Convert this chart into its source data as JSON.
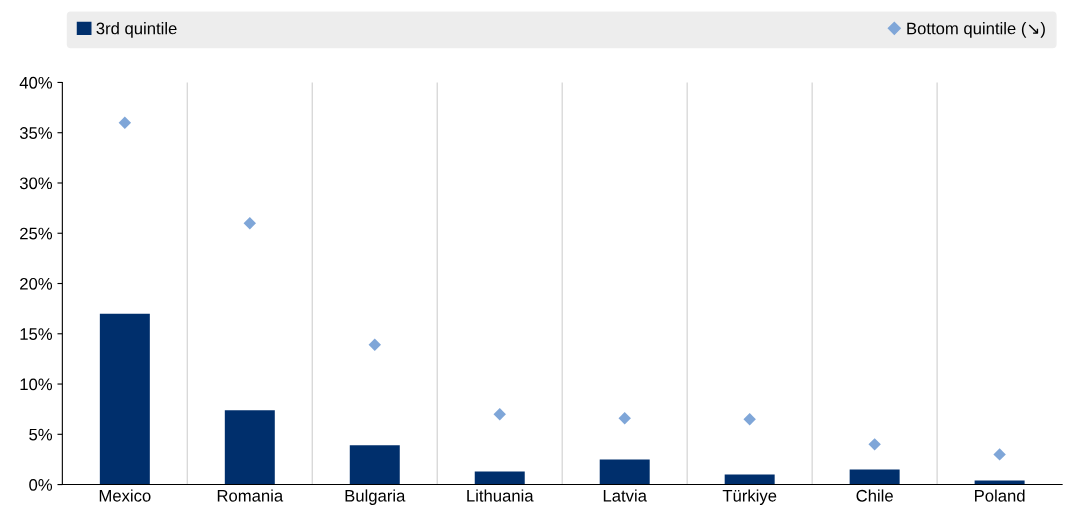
{
  "chart_data": {
    "type": "bar",
    "categories": [
      "Mexico",
      "Romania",
      "Bulgaria",
      "Lithuania",
      "Latvia",
      "Türkiye",
      "Chile",
      "Poland"
    ],
    "series": [
      {
        "name": "3rd quintile",
        "color": "#002f6c",
        "values": [
          17.0,
          7.4,
          3.9,
          1.3,
          2.5,
          1.0,
          1.5,
          0.4
        ]
      },
      {
        "name": "Bottom quintile (↘)",
        "color": "#7fa6d8",
        "type": "scatter",
        "values": [
          36.0,
          26.0,
          13.9,
          7.0,
          6.6,
          6.5,
          4.0,
          3.0
        ]
      }
    ],
    "ylim": [
      0,
      40
    ],
    "yticks": [
      {
        "value": 0,
        "label": "0%"
      },
      {
        "value": 5,
        "label": "5%"
      },
      {
        "value": 10,
        "label": "10%"
      },
      {
        "value": 15,
        "label": "15%"
      },
      {
        "value": 20,
        "label": "20%"
      },
      {
        "value": 25,
        "label": "25%"
      },
      {
        "value": 30,
        "label": "30%"
      },
      {
        "value": 35,
        "label": "35%"
      },
      {
        "value": 40,
        "label": "40%"
      }
    ],
    "grid": "x",
    "legend": "top",
    "marker": "diamond"
  }
}
